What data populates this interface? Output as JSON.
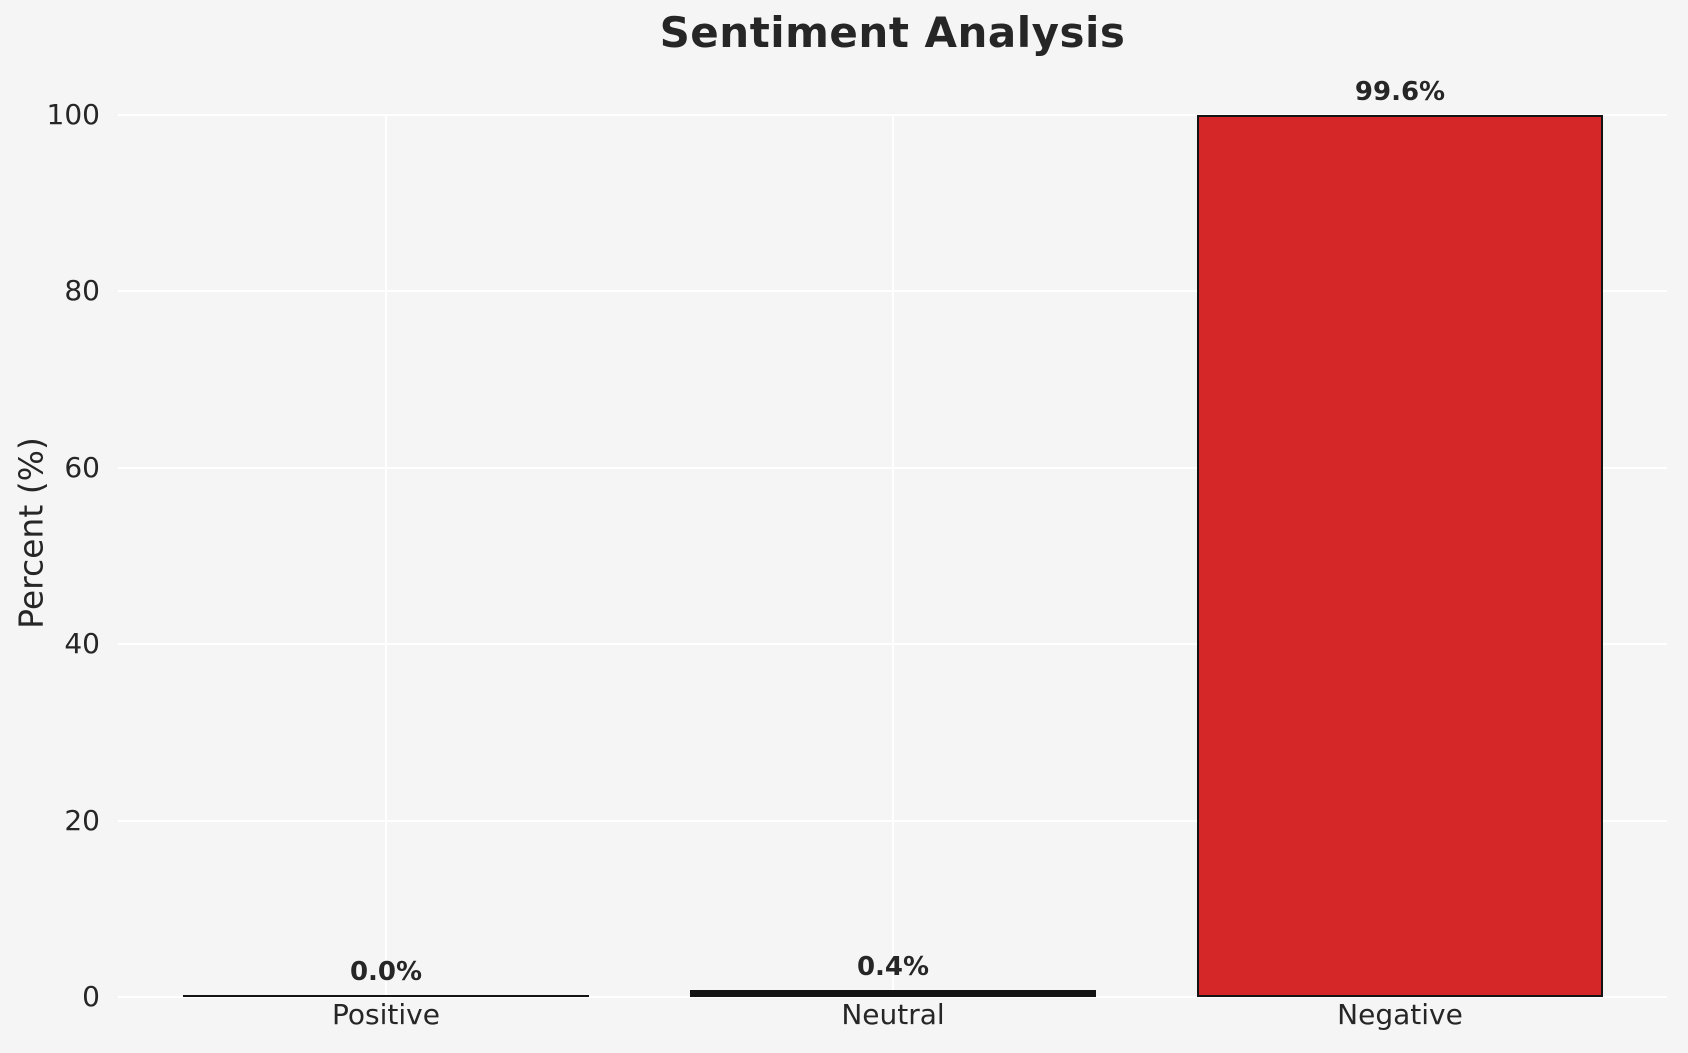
{
  "chart_data": {
    "type": "bar",
    "title": "Sentiment Analysis",
    "categories": [
      "Positive",
      "Neutral",
      "Negative"
    ],
    "values": [
      0.0,
      0.4,
      99.6
    ],
    "value_labels": [
      "0.0%",
      "0.4%",
      "99.6%"
    ],
    "xlabel": "",
    "ylabel": "Percent (%)",
    "ylim": [
      0,
      100
    ],
    "yticks": [
      0,
      20,
      40,
      60,
      80,
      100
    ],
    "grid": true,
    "legend": false,
    "colors": {
      "background": "#f5f5f5",
      "gridline": "#ffffff",
      "text": "#262626",
      "bar_fill": "#d62728",
      "bar_edge": "#141414"
    }
  }
}
